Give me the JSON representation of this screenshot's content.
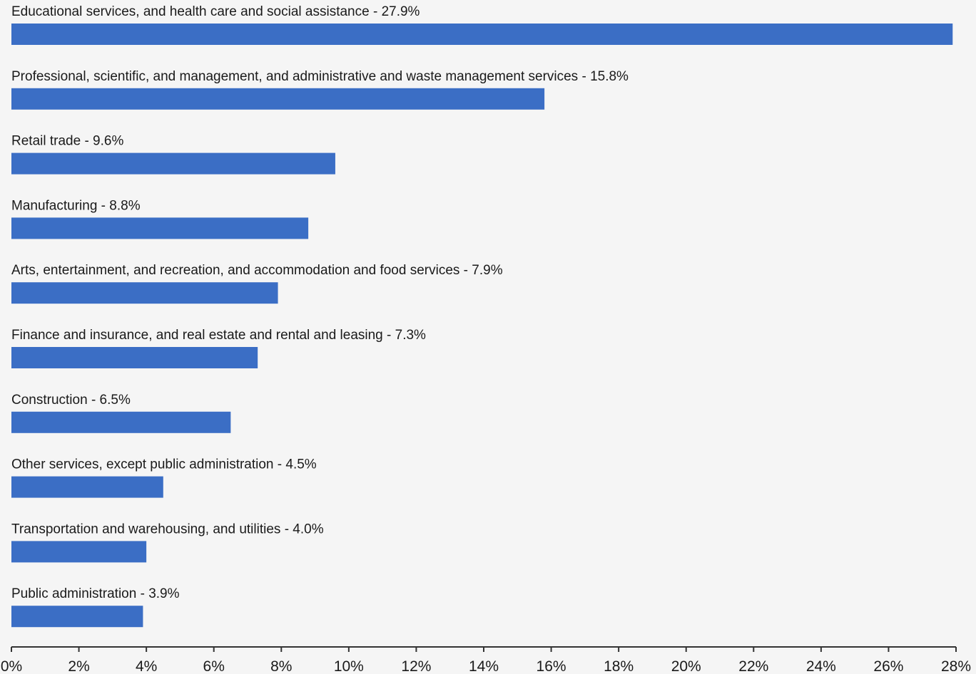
{
  "chart_data": {
    "type": "bar",
    "orientation": "horizontal",
    "categories": [
      "Educational services, and health care and social assistance",
      "Professional, scientific, and management, and administrative and waste management services",
      "Retail trade",
      "Manufacturing",
      "Arts, entertainment, and recreation, and accommodation and food services",
      "Finance and insurance, and real estate and rental and leasing",
      "Construction",
      "Other services, except public administration",
      "Transportation and warehousing, and utilities",
      "Public administration"
    ],
    "values": [
      27.9,
      15.8,
      9.6,
      8.8,
      7.9,
      7.3,
      6.5,
      4.5,
      4.0,
      3.9
    ],
    "value_labels": [
      "27.9%",
      "15.8%",
      "9.6%",
      "8.8%",
      "7.9%",
      "7.3%",
      "6.5%",
      "4.5%",
      "4.0%",
      "3.9%"
    ],
    "label_separator": " - ",
    "xlim": [
      0,
      28
    ],
    "xticks": [
      0,
      2,
      4,
      6,
      8,
      10,
      12,
      14,
      16,
      18,
      20,
      22,
      24,
      26,
      28
    ],
    "xtick_labels": [
      "0%",
      "2%",
      "4%",
      "6%",
      "8%",
      "10%",
      "12%",
      "14%",
      "16%",
      "18%",
      "20%",
      "22%",
      "24%",
      "26%",
      "28%"
    ],
    "bar_color": "#3b6ec5",
    "axis_color": "#333333",
    "grid": false
  }
}
